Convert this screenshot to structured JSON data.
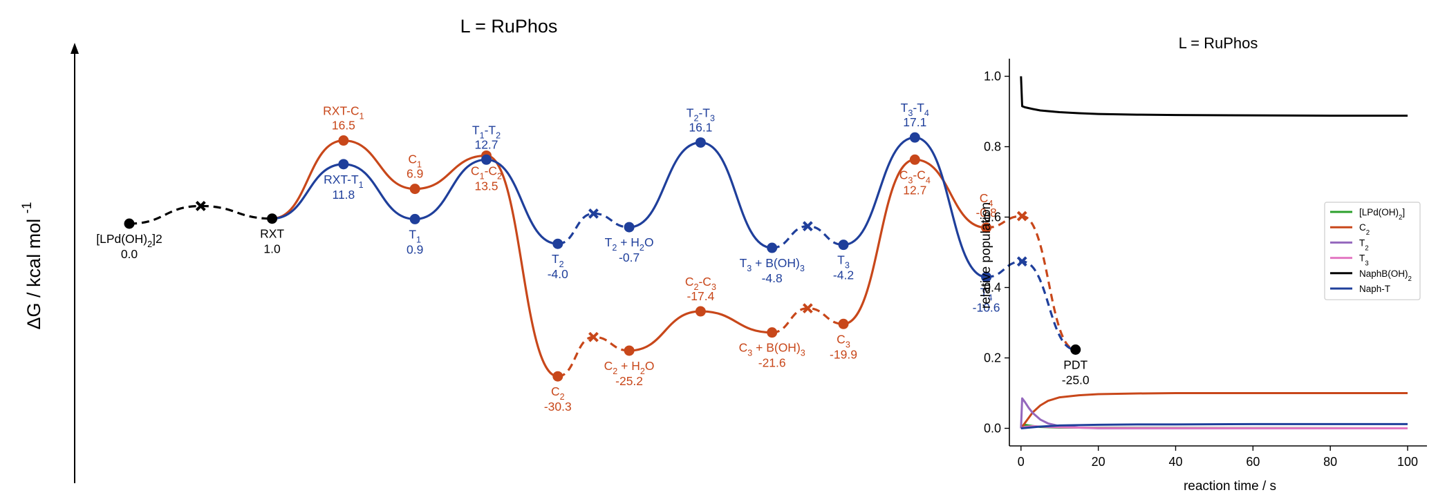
{
  "chart_data": [
    {
      "type": "line",
      "title": "L = RuPhos",
      "ylabel": "ΔG / kcal mol",
      "ylabel_superscript": "-1",
      "colors": {
        "black": "#000000",
        "blue": "#1f3f9b",
        "orange": "#c8471a"
      },
      "states": [
        {
          "id": "s0",
          "x": 0,
          "value": 0.0,
          "label": "[LPd(OH)2]2",
          "color": "black",
          "marker": "dot",
          "label_pos": "below"
        },
        {
          "id": "s1",
          "x": 1,
          "value": 3.5,
          "color": "black",
          "marker": "x"
        },
        {
          "id": "s2",
          "x": 2,
          "value": 1.0,
          "label": "RXT",
          "color": "black",
          "marker": "dot",
          "label_pos": "below"
        },
        {
          "id": "s3",
          "x": 3,
          "value": 16.5,
          "label": "RXT-C1",
          "color": "orange",
          "marker": "dot",
          "label_pos": "above"
        },
        {
          "id": "s4",
          "x": 3,
          "value": 11.8,
          "label": "RXT-T1",
          "color": "blue",
          "marker": "dot",
          "label_pos": "below"
        },
        {
          "id": "s5",
          "x": 4,
          "value": 6.9,
          "label": "C1",
          "color": "orange",
          "marker": "dot",
          "label_pos": "above"
        },
        {
          "id": "s6",
          "x": 4,
          "value": 0.9,
          "label": "T1",
          "color": "blue",
          "marker": "dot",
          "label_pos": "below"
        },
        {
          "id": "s7",
          "x": 5,
          "value": 13.5,
          "label": "C1-C2",
          "color": "orange",
          "marker": "dot",
          "label_pos": "below"
        },
        {
          "id": "s8",
          "x": 5,
          "value": 12.7,
          "label": "T1-T2",
          "color": "blue",
          "marker": "dot",
          "label_pos": "above"
        },
        {
          "id": "s9",
          "x": 6,
          "value": -30.3,
          "label": "C2",
          "color": "orange",
          "marker": "dot",
          "label_pos": "below"
        },
        {
          "id": "s10",
          "x": 6,
          "value": -4.0,
          "label": "T2",
          "color": "blue",
          "marker": "dot",
          "label_pos": "below"
        },
        {
          "id": "s11",
          "x": 6.5,
          "value": -22.5,
          "color": "orange",
          "marker": "x"
        },
        {
          "id": "s12",
          "x": 6.5,
          "value": 2.0,
          "color": "blue",
          "marker": "x"
        },
        {
          "id": "s13",
          "x": 7,
          "value": -25.2,
          "label": "C2 + H2O",
          "color": "orange",
          "marker": "dot",
          "label_pos": "below"
        },
        {
          "id": "s14",
          "x": 7,
          "value": -0.7,
          "label": "T2 + H2O",
          "color": "blue",
          "marker": "dot",
          "label_pos": "below"
        },
        {
          "id": "s15",
          "x": 8,
          "value": -17.4,
          "label": "C2-C3",
          "color": "orange",
          "marker": "dot",
          "label_pos": "above"
        },
        {
          "id": "s16",
          "x": 8,
          "value": 16.1,
          "label": "T2-T3",
          "color": "blue",
          "marker": "dot",
          "label_pos": "above"
        },
        {
          "id": "s17",
          "x": 9,
          "value": -21.6,
          "label": "C3 + B(OH)3",
          "color": "orange",
          "marker": "dot",
          "label_pos": "below"
        },
        {
          "id": "s18",
          "x": 9,
          "value": -4.8,
          "label": "T3 + B(OH)3",
          "color": "blue",
          "marker": "dot",
          "label_pos": "below"
        },
        {
          "id": "s19",
          "x": 9.5,
          "value": -16.8,
          "color": "orange",
          "marker": "x"
        },
        {
          "id": "s20",
          "x": 9.5,
          "value": -0.5,
          "color": "blue",
          "marker": "x"
        },
        {
          "id": "s21",
          "x": 10,
          "value": -19.9,
          "label": "C3",
          "color": "orange",
          "marker": "dot",
          "label_pos": "below"
        },
        {
          "id": "s22",
          "x": 10,
          "value": -4.2,
          "label": "T3",
          "color": "blue",
          "marker": "dot",
          "label_pos": "below"
        },
        {
          "id": "s23",
          "x": 11,
          "value": 12.7,
          "label": "C3-C4",
          "color": "orange",
          "marker": "dot",
          "label_pos": "below"
        },
        {
          "id": "s24",
          "x": 11,
          "value": 17.1,
          "label": "T3-T4",
          "color": "blue",
          "marker": "dot",
          "label_pos": "above"
        },
        {
          "id": "s25",
          "x": 12,
          "value": -0.8,
          "label": "C4",
          "color": "orange",
          "marker": "dot",
          "label_pos": "above"
        },
        {
          "id": "s26",
          "x": 12,
          "value": -10.6,
          "label": "T4",
          "color": "blue",
          "marker": "dot",
          "label_pos": "below"
        },
        {
          "id": "s27",
          "x": 12.5,
          "value": 1.5,
          "color": "orange",
          "marker": "x"
        },
        {
          "id": "s28",
          "x": 12.5,
          "value": -7.5,
          "color": "blue",
          "marker": "x"
        },
        {
          "id": "s29",
          "x": 13.25,
          "value": -25.0,
          "label": "PDT",
          "color": "black",
          "marker": "dot",
          "label_pos": "below"
        }
      ],
      "segments": [
        {
          "path": [
            "s0",
            "s1",
            "s2"
          ],
          "color": "black",
          "dashed": true
        },
        {
          "path": [
            "s2",
            "s3",
            "s5",
            "s7",
            "s9"
          ],
          "color": "orange",
          "dashed": false
        },
        {
          "path": [
            "s2",
            "s4",
            "s6",
            "s8",
            "s10"
          ],
          "color": "blue",
          "dashed": false
        },
        {
          "path": [
            "s9",
            "s11",
            "s13"
          ],
          "color": "orange",
          "dashed": true
        },
        {
          "path": [
            "s10",
            "s12",
            "s14"
          ],
          "color": "blue",
          "dashed": true
        },
        {
          "path": [
            "s13",
            "s15",
            "s17"
          ],
          "color": "orange",
          "dashed": false
        },
        {
          "path": [
            "s14",
            "s16",
            "s18"
          ],
          "color": "blue",
          "dashed": false
        },
        {
          "path": [
            "s17",
            "s19",
            "s21"
          ],
          "color": "orange",
          "dashed": true
        },
        {
          "path": [
            "s18",
            "s20",
            "s22"
          ],
          "color": "blue",
          "dashed": true
        },
        {
          "path": [
            "s21",
            "s23",
            "s25"
          ],
          "color": "orange",
          "dashed": false
        },
        {
          "path": [
            "s22",
            "s24",
            "s26"
          ],
          "color": "blue",
          "dashed": false
        },
        {
          "path": [
            "s25",
            "s27",
            "s29"
          ],
          "color": "orange",
          "dashed": true
        },
        {
          "path": [
            "s26",
            "s28",
            "s29"
          ],
          "color": "blue",
          "dashed": true
        }
      ]
    },
    {
      "type": "line",
      "title": "L = RuPhos",
      "xlabel": "reaction time / s",
      "ylabel": "relative population",
      "xlim": [
        -3,
        105
      ],
      "ylim": [
        -0.05,
        1.05
      ],
      "xticks": [
        0,
        20,
        40,
        60,
        80,
        100
      ],
      "yticks": [
        0.0,
        0.2,
        0.4,
        0.6,
        0.8,
        1.0
      ],
      "xtick_labels": [
        "0",
        "20",
        "40",
        "60",
        "80",
        "100"
      ],
      "ytick_labels": [
        "0.0",
        "0.2",
        "0.4",
        "0.6",
        "0.8",
        "1.0"
      ],
      "legend_position": "right",
      "series": [
        {
          "name": "[LPd(OH)2]",
          "color": "#2ca02c",
          "x": [
            0,
            0.5,
            1,
            2,
            5,
            10,
            100
          ],
          "values": [
            0.0,
            0.008,
            0.01,
            0.008,
            0.004,
            0.002,
            0.0
          ]
        },
        {
          "name": "C2",
          "color": "#c8471a",
          "x": [
            0,
            1,
            2,
            3,
            5,
            7,
            10,
            15,
            20,
            30,
            40,
            60,
            100
          ],
          "values": [
            0.0,
            0.015,
            0.03,
            0.045,
            0.065,
            0.078,
            0.088,
            0.094,
            0.097,
            0.099,
            0.1,
            0.1,
            0.1
          ]
        },
        {
          "name": "T2",
          "color": "#9467bd",
          "x": [
            0,
            0.3,
            1,
            2,
            3,
            5,
            7,
            10,
            15,
            20,
            100
          ],
          "values": [
            0.0,
            0.085,
            0.075,
            0.058,
            0.044,
            0.025,
            0.014,
            0.006,
            0.002,
            0.0,
            0.0
          ]
        },
        {
          "name": "T3",
          "color": "#e377c2",
          "x": [
            0,
            1,
            3,
            5,
            10,
            20,
            100
          ],
          "values": [
            0.0,
            0.004,
            0.006,
            0.005,
            0.003,
            0.001,
            0.0
          ]
        },
        {
          "name": "NaphB(OH)2",
          "color": "#000000",
          "x": [
            0,
            0.3,
            1,
            3,
            5,
            10,
            15,
            20,
            30,
            40,
            60,
            80,
            100
          ],
          "values": [
            1.0,
            0.915,
            0.912,
            0.907,
            0.903,
            0.898,
            0.895,
            0.893,
            0.891,
            0.89,
            0.889,
            0.888,
            0.888
          ]
        },
        {
          "name": "Naph-T",
          "color": "#1f3f9b",
          "x": [
            0,
            1,
            3,
            5,
            10,
            15,
            20,
            30,
            40,
            60,
            100
          ],
          "values": [
            0.0,
            0.001,
            0.003,
            0.005,
            0.008,
            0.009,
            0.01,
            0.011,
            0.011,
            0.012,
            0.012
          ]
        }
      ]
    }
  ]
}
